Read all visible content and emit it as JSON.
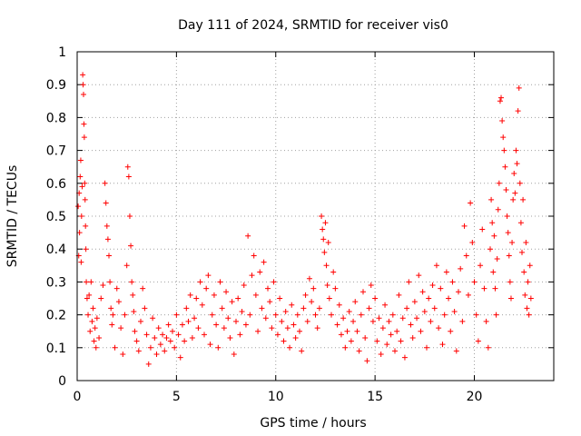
{
  "chart_data": {
    "type": "scatter",
    "title": "Day 111 of 2024, SRMTID for receiver vis0",
    "xlabel": "GPS time / hours",
    "ylabel": "SRMTID / TECUs",
    "xlim": [
      0,
      24
    ],
    "ylim": [
      0,
      1
    ],
    "x_ticks": [
      0,
      5,
      10,
      15,
      20
    ],
    "x_tick_labels": [
      "0",
      "5",
      "10",
      "15",
      "20"
    ],
    "y_ticks": [
      0,
      0.1,
      0.2,
      0.3,
      0.4,
      0.5,
      0.6,
      0.7,
      0.8,
      0.9,
      1
    ],
    "y_tick_labels": [
      "0",
      "0.1",
      "0.2",
      "0.3",
      "0.4",
      "0.5",
      "0.6",
      "0.7",
      "0.8",
      "0.9",
      "1"
    ],
    "grid": true,
    "marker": "plus",
    "series": [
      {
        "name": "vis0",
        "color": "#ff0000",
        "points": [
          [
            0.05,
            0.53
          ],
          [
            0.08,
            0.38
          ],
          [
            0.1,
            0.57
          ],
          [
            0.12,
            0.45
          ],
          [
            0.15,
            0.62
          ],
          [
            0.18,
            0.67
          ],
          [
            0.2,
            0.36
          ],
          [
            0.22,
            0.5
          ],
          [
            0.25,
            0.59
          ],
          [
            0.28,
            0.93
          ],
          [
            0.3,
            0.9
          ],
          [
            0.32,
            0.87
          ],
          [
            0.34,
            0.78
          ],
          [
            0.36,
            0.74
          ],
          [
            0.38,
            0.6
          ],
          [
            0.4,
            0.55
          ],
          [
            0.42,
            0.47
          ],
          [
            0.44,
            0.4
          ],
          [
            0.46,
            0.3
          ],
          [
            0.5,
            0.25
          ],
          [
            0.55,
            0.2
          ],
          [
            0.6,
            0.26
          ],
          [
            0.65,
            0.15
          ],
          [
            0.7,
            0.3
          ],
          [
            0.75,
            0.18
          ],
          [
            0.8,
            0.22
          ],
          [
            0.85,
            0.12
          ],
          [
            0.9,
            0.16
          ],
          [
            0.95,
            0.1
          ],
          [
            1.0,
            0.19
          ],
          [
            1.1,
            0.13
          ],
          [
            1.2,
            0.25
          ],
          [
            1.3,
            0.29
          ],
          [
            1.4,
            0.6
          ],
          [
            1.45,
            0.54
          ],
          [
            1.5,
            0.47
          ],
          [
            1.55,
            0.43
          ],
          [
            1.6,
            0.38
          ],
          [
            1.65,
            0.3
          ],
          [
            1.7,
            0.22
          ],
          [
            1.75,
            0.17
          ],
          [
            1.8,
            0.2
          ],
          [
            1.9,
            0.1
          ],
          [
            2.0,
            0.28
          ],
          [
            2.1,
            0.24
          ],
          [
            2.2,
            0.16
          ],
          [
            2.3,
            0.08
          ],
          [
            2.4,
            0.2
          ],
          [
            2.5,
            0.35
          ],
          [
            2.55,
            0.65
          ],
          [
            2.6,
            0.62
          ],
          [
            2.65,
            0.5
          ],
          [
            2.7,
            0.41
          ],
          [
            2.75,
            0.3
          ],
          [
            2.8,
            0.26
          ],
          [
            2.85,
            0.21
          ],
          [
            2.9,
            0.15
          ],
          [
            3.0,
            0.12
          ],
          [
            3.1,
            0.09
          ],
          [
            3.2,
            0.18
          ],
          [
            3.3,
            0.28
          ],
          [
            3.4,
            0.22
          ],
          [
            3.5,
            0.14
          ],
          [
            3.6,
            0.05
          ],
          [
            3.7,
            0.1
          ],
          [
            3.8,
            0.19
          ],
          [
            3.9,
            0.13
          ],
          [
            4.0,
            0.08
          ],
          [
            4.1,
            0.16
          ],
          [
            4.2,
            0.11
          ],
          [
            4.3,
            0.14
          ],
          [
            4.4,
            0.09
          ],
          [
            4.5,
            0.13
          ],
          [
            4.6,
            0.17
          ],
          [
            4.7,
            0.12
          ],
          [
            4.8,
            0.15
          ],
          [
            4.9,
            0.1
          ],
          [
            5.0,
            0.2
          ],
          [
            5.1,
            0.14
          ],
          [
            5.2,
            0.07
          ],
          [
            5.3,
            0.17
          ],
          [
            5.4,
            0.12
          ],
          [
            5.5,
            0.22
          ],
          [
            5.6,
            0.18
          ],
          [
            5.7,
            0.26
          ],
          [
            5.8,
            0.13
          ],
          [
            5.9,
            0.19
          ],
          [
            6.0,
            0.25
          ],
          [
            6.1,
            0.16
          ],
          [
            6.2,
            0.3
          ],
          [
            6.3,
            0.23
          ],
          [
            6.4,
            0.14
          ],
          [
            6.5,
            0.28
          ],
          [
            6.6,
            0.32
          ],
          [
            6.7,
            0.11
          ],
          [
            6.8,
            0.2
          ],
          [
            6.9,
            0.26
          ],
          [
            7.0,
            0.17
          ],
          [
            7.1,
            0.1
          ],
          [
            7.2,
            0.3
          ],
          [
            7.3,
            0.22
          ],
          [
            7.4,
            0.16
          ],
          [
            7.5,
            0.27
          ],
          [
            7.6,
            0.19
          ],
          [
            7.7,
            0.13
          ],
          [
            7.8,
            0.24
          ],
          [
            7.9,
            0.08
          ],
          [
            8.0,
            0.18
          ],
          [
            8.1,
            0.25
          ],
          [
            8.2,
            0.14
          ],
          [
            8.3,
            0.21
          ],
          [
            8.4,
            0.29
          ],
          [
            8.5,
            0.17
          ],
          [
            8.6,
            0.44
          ],
          [
            8.7,
            0.2
          ],
          [
            8.8,
            0.32
          ],
          [
            8.9,
            0.38
          ],
          [
            9.0,
            0.26
          ],
          [
            9.1,
            0.15
          ],
          [
            9.2,
            0.33
          ],
          [
            9.3,
            0.22
          ],
          [
            9.4,
            0.36
          ],
          [
            9.5,
            0.19
          ],
          [
            9.6,
            0.28
          ],
          [
            9.7,
            0.24
          ],
          [
            9.8,
            0.16
          ],
          [
            9.9,
            0.3
          ],
          [
            10.0,
            0.2
          ],
          [
            10.1,
            0.14
          ],
          [
            10.2,
            0.25
          ],
          [
            10.3,
            0.18
          ],
          [
            10.4,
            0.12
          ],
          [
            10.5,
            0.21
          ],
          [
            10.6,
            0.16
          ],
          [
            10.7,
            0.1
          ],
          [
            10.8,
            0.23
          ],
          [
            10.9,
            0.17
          ],
          [
            11.0,
            0.13
          ],
          [
            11.1,
            0.2
          ],
          [
            11.2,
            0.15
          ],
          [
            11.3,
            0.09
          ],
          [
            11.4,
            0.22
          ],
          [
            11.5,
            0.26
          ],
          [
            11.6,
            0.18
          ],
          [
            11.7,
            0.31
          ],
          [
            11.8,
            0.24
          ],
          [
            11.9,
            0.28
          ],
          [
            12.0,
            0.2
          ],
          [
            12.1,
            0.16
          ],
          [
            12.2,
            0.22
          ],
          [
            12.3,
            0.5
          ],
          [
            12.35,
            0.46
          ],
          [
            12.4,
            0.43
          ],
          [
            12.45,
            0.39
          ],
          [
            12.5,
            0.48
          ],
          [
            12.55,
            0.35
          ],
          [
            12.6,
            0.29
          ],
          [
            12.65,
            0.42
          ],
          [
            12.7,
            0.25
          ],
          [
            12.8,
            0.2
          ],
          [
            12.9,
            0.33
          ],
          [
            13.0,
            0.28
          ],
          [
            13.1,
            0.17
          ],
          [
            13.2,
            0.23
          ],
          [
            13.3,
            0.14
          ],
          [
            13.4,
            0.19
          ],
          [
            13.5,
            0.1
          ],
          [
            13.6,
            0.15
          ],
          [
            13.7,
            0.21
          ],
          [
            13.8,
            0.12
          ],
          [
            13.9,
            0.18
          ],
          [
            14.0,
            0.24
          ],
          [
            14.1,
            0.15
          ],
          [
            14.2,
            0.09
          ],
          [
            14.3,
            0.2
          ],
          [
            14.4,
            0.27
          ],
          [
            14.5,
            0.13
          ],
          [
            14.6,
            0.06
          ],
          [
            14.7,
            0.22
          ],
          [
            14.8,
            0.29
          ],
          [
            14.9,
            0.18
          ],
          [
            15.0,
            0.25
          ],
          [
            15.1,
            0.12
          ],
          [
            15.2,
            0.19
          ],
          [
            15.3,
            0.08
          ],
          [
            15.4,
            0.16
          ],
          [
            15.5,
            0.23
          ],
          [
            15.6,
            0.11
          ],
          [
            15.7,
            0.18
          ],
          [
            15.8,
            0.14
          ],
          [
            15.9,
            0.2
          ],
          [
            16.0,
            0.09
          ],
          [
            16.1,
            0.15
          ],
          [
            16.2,
            0.26
          ],
          [
            16.3,
            0.12
          ],
          [
            16.4,
            0.19
          ],
          [
            16.5,
            0.07
          ],
          [
            16.6,
            0.22
          ],
          [
            16.7,
            0.3
          ],
          [
            16.8,
            0.17
          ],
          [
            16.9,
            0.13
          ],
          [
            17.0,
            0.24
          ],
          [
            17.1,
            0.19
          ],
          [
            17.2,
            0.32
          ],
          [
            17.3,
            0.15
          ],
          [
            17.4,
            0.27
          ],
          [
            17.5,
            0.21
          ],
          [
            17.6,
            0.1
          ],
          [
            17.7,
            0.25
          ],
          [
            17.8,
            0.18
          ],
          [
            17.9,
            0.29
          ],
          [
            18.0,
            0.22
          ],
          [
            18.1,
            0.35
          ],
          [
            18.2,
            0.16
          ],
          [
            18.3,
            0.28
          ],
          [
            18.4,
            0.11
          ],
          [
            18.5,
            0.2
          ],
          [
            18.6,
            0.33
          ],
          [
            18.7,
            0.25
          ],
          [
            18.8,
            0.15
          ],
          [
            18.9,
            0.3
          ],
          [
            19.0,
            0.21
          ],
          [
            19.1,
            0.09
          ],
          [
            19.2,
            0.27
          ],
          [
            19.3,
            0.34
          ],
          [
            19.4,
            0.18
          ],
          [
            19.5,
            0.47
          ],
          [
            19.6,
            0.38
          ],
          [
            19.7,
            0.26
          ],
          [
            19.8,
            0.54
          ],
          [
            19.9,
            0.42
          ],
          [
            20.0,
            0.3
          ],
          [
            20.1,
            0.2
          ],
          [
            20.2,
            0.12
          ],
          [
            20.3,
            0.35
          ],
          [
            20.4,
            0.46
          ],
          [
            20.5,
            0.28
          ],
          [
            20.6,
            0.18
          ],
          [
            20.7,
            0.1
          ],
          [
            20.8,
            0.4
          ],
          [
            20.85,
            0.55
          ],
          [
            20.9,
            0.48
          ],
          [
            20.95,
            0.33
          ],
          [
            21.0,
            0.44
          ],
          [
            21.05,
            0.28
          ],
          [
            21.1,
            0.2
          ],
          [
            21.15,
            0.37
          ],
          [
            21.2,
            0.52
          ],
          [
            21.25,
            0.6
          ],
          [
            21.3,
            0.85
          ],
          [
            21.35,
            0.86
          ],
          [
            21.4,
            0.79
          ],
          [
            21.45,
            0.74
          ],
          [
            21.5,
            0.7
          ],
          [
            21.55,
            0.65
          ],
          [
            21.6,
            0.58
          ],
          [
            21.65,
            0.5
          ],
          [
            21.7,
            0.45
          ],
          [
            21.75,
            0.38
          ],
          [
            21.8,
            0.3
          ],
          [
            21.85,
            0.25
          ],
          [
            21.9,
            0.42
          ],
          [
            21.95,
            0.55
          ],
          [
            22.0,
            0.63
          ],
          [
            22.05,
            0.57
          ],
          [
            22.1,
            0.7
          ],
          [
            22.15,
            0.66
          ],
          [
            22.2,
            0.82
          ],
          [
            22.25,
            0.89
          ],
          [
            22.3,
            0.6
          ],
          [
            22.35,
            0.48
          ],
          [
            22.4,
            0.39
          ],
          [
            22.45,
            0.55
          ],
          [
            22.5,
            0.33
          ],
          [
            22.55,
            0.26
          ],
          [
            22.6,
            0.42
          ],
          [
            22.65,
            0.22
          ],
          [
            22.7,
            0.3
          ],
          [
            22.75,
            0.2
          ],
          [
            22.8,
            0.35
          ],
          [
            22.85,
            0.25
          ]
        ]
      }
    ]
  }
}
